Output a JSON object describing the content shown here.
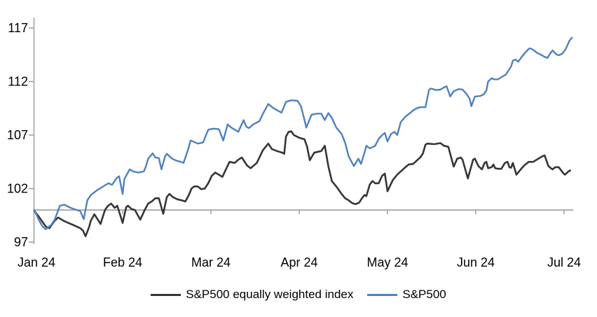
{
  "chart_data": {
    "type": "line",
    "title": "",
    "x_axis": {
      "labels": [
        "Jan 24",
        "Feb 24",
        "Mar 24",
        "Apr 24",
        "May 24",
        "Jun 24",
        "Jul 24"
      ]
    },
    "y_axis": {
      "min": 97,
      "max": 117,
      "ticks": [
        97,
        102,
        107,
        112,
        117
      ]
    },
    "baseline_value": 100,
    "grid": false,
    "legend_position": "bottom",
    "series": [
      {
        "name": "S&P500 equally weighted index",
        "color": "#363636",
        "points": [
          [
            0.0,
            99.9
          ],
          [
            0.05,
            99.4
          ],
          [
            0.1,
            98.8
          ],
          [
            0.13,
            98.45
          ],
          [
            0.17,
            98.3
          ],
          [
            0.23,
            99.0
          ],
          [
            0.27,
            99.3
          ],
          [
            0.33,
            99.0
          ],
          [
            0.37,
            98.85
          ],
          [
            0.44,
            98.6
          ],
          [
            0.52,
            98.3
          ],
          [
            0.55,
            98.1
          ],
          [
            0.58,
            97.55
          ],
          [
            0.62,
            98.4
          ],
          [
            0.64,
            99.0
          ],
          [
            0.68,
            99.6
          ],
          [
            0.75,
            98.7
          ],
          [
            0.8,
            100.0
          ],
          [
            0.83,
            100.35
          ],
          [
            0.87,
            100.6
          ],
          [
            0.91,
            100.2
          ],
          [
            0.94,
            100.4
          ],
          [
            1.0,
            98.8
          ],
          [
            1.04,
            100.25
          ],
          [
            1.06,
            100.4
          ],
          [
            1.1,
            100.1
          ],
          [
            1.14,
            100.0
          ],
          [
            1.2,
            99.1
          ],
          [
            1.25,
            100.0
          ],
          [
            1.29,
            100.6
          ],
          [
            1.33,
            100.8
          ],
          [
            1.37,
            101.1
          ],
          [
            1.41,
            101.1
          ],
          [
            1.46,
            99.65
          ],
          [
            1.5,
            101.2
          ],
          [
            1.53,
            101.5
          ],
          [
            1.57,
            101.2
          ],
          [
            1.62,
            101.0
          ],
          [
            1.67,
            100.9
          ],
          [
            1.71,
            100.8
          ],
          [
            1.75,
            101.4
          ],
          [
            1.78,
            102.0
          ],
          [
            1.81,
            102.2
          ],
          [
            1.85,
            102.2
          ],
          [
            1.89,
            101.95
          ],
          [
            1.93,
            102.0
          ],
          [
            1.97,
            102.5
          ],
          [
            2.01,
            103.2
          ],
          [
            2.05,
            103.5
          ],
          [
            2.13,
            103.1
          ],
          [
            2.21,
            104.5
          ],
          [
            2.27,
            104.4
          ],
          [
            2.31,
            104.7
          ],
          [
            2.35,
            104.9
          ],
          [
            2.41,
            104.15
          ],
          [
            2.45,
            103.9
          ],
          [
            2.52,
            104.4
          ],
          [
            2.59,
            105.6
          ],
          [
            2.65,
            106.2
          ],
          [
            2.69,
            105.7
          ],
          [
            2.75,
            105.5
          ],
          [
            2.81,
            105.35
          ],
          [
            2.83,
            105.25
          ],
          [
            2.85,
            106.85
          ],
          [
            2.88,
            107.3
          ],
          [
            2.91,
            107.35
          ],
          [
            2.94,
            107.0
          ],
          [
            3.0,
            106.75
          ],
          [
            3.02,
            106.7
          ],
          [
            3.06,
            106.6
          ],
          [
            3.09,
            105.9
          ],
          [
            3.12,
            104.65
          ],
          [
            3.17,
            105.35
          ],
          [
            3.22,
            105.45
          ],
          [
            3.25,
            105.5
          ],
          [
            3.29,
            106.0
          ],
          [
            3.33,
            104.1
          ],
          [
            3.37,
            102.7
          ],
          [
            3.42,
            102.2
          ],
          [
            3.48,
            101.5
          ],
          [
            3.52,
            101.1
          ],
          [
            3.56,
            100.9
          ],
          [
            3.6,
            100.65
          ],
          [
            3.64,
            100.55
          ],
          [
            3.68,
            100.7
          ],
          [
            3.71,
            101.1
          ],
          [
            3.74,
            101.4
          ],
          [
            3.76,
            101.3
          ],
          [
            3.8,
            102.4
          ],
          [
            3.83,
            102.7
          ],
          [
            3.86,
            102.5
          ],
          [
            3.9,
            102.5
          ],
          [
            3.94,
            103.2
          ],
          [
            3.97,
            103.4
          ],
          [
            4.0,
            101.75
          ],
          [
            4.06,
            102.8
          ],
          [
            4.11,
            103.3
          ],
          [
            4.19,
            103.9
          ],
          [
            4.24,
            104.25
          ],
          [
            4.29,
            104.3
          ],
          [
            4.37,
            104.9
          ],
          [
            4.4,
            105.25
          ],
          [
            4.43,
            106.1
          ],
          [
            4.45,
            106.2
          ],
          [
            4.53,
            106.15
          ],
          [
            4.6,
            106.25
          ],
          [
            4.64,
            106.0
          ],
          [
            4.69,
            105.9
          ],
          [
            4.71,
            105.25
          ],
          [
            4.75,
            104.05
          ],
          [
            4.79,
            104.8
          ],
          [
            4.83,
            104.9
          ],
          [
            4.85,
            104.7
          ],
          [
            4.91,
            102.95
          ],
          [
            4.97,
            104.7
          ],
          [
            4.99,
            104.8
          ],
          [
            5.03,
            104.1
          ],
          [
            5.07,
            103.8
          ],
          [
            5.1,
            104.4
          ],
          [
            5.12,
            104.5
          ],
          [
            5.14,
            103.9
          ],
          [
            5.18,
            104.0
          ],
          [
            5.2,
            104.25
          ],
          [
            5.22,
            103.9
          ],
          [
            5.25,
            103.85
          ],
          [
            5.29,
            103.85
          ],
          [
            5.33,
            104.4
          ],
          [
            5.36,
            104.5
          ],
          [
            5.38,
            104.0
          ],
          [
            5.4,
            103.95
          ],
          [
            5.42,
            104.4
          ],
          [
            5.46,
            103.3
          ],
          [
            5.52,
            103.9
          ],
          [
            5.56,
            104.25
          ],
          [
            5.6,
            104.5
          ],
          [
            5.65,
            104.5
          ],
          [
            5.71,
            104.8
          ],
          [
            5.75,
            105.0
          ],
          [
            5.78,
            105.1
          ],
          [
            5.82,
            104.15
          ],
          [
            5.85,
            103.9
          ],
          [
            5.87,
            103.8
          ],
          [
            5.9,
            104.0
          ],
          [
            5.94,
            104.0
          ],
          [
            5.99,
            103.45
          ],
          [
            6.01,
            103.3
          ],
          [
            6.05,
            103.6
          ],
          [
            6.07,
            103.7
          ]
        ]
      },
      {
        "name": "S&P500",
        "color": "#4F81BD",
        "points": [
          [
            0.0,
            100.0
          ],
          [
            0.05,
            99.1
          ],
          [
            0.09,
            98.5
          ],
          [
            0.13,
            98.2
          ],
          [
            0.19,
            98.6
          ],
          [
            0.23,
            99.1
          ],
          [
            0.29,
            100.4
          ],
          [
            0.34,
            100.5
          ],
          [
            0.41,
            100.2
          ],
          [
            0.48,
            100.0
          ],
          [
            0.52,
            99.9
          ],
          [
            0.56,
            99.15
          ],
          [
            0.6,
            100.9
          ],
          [
            0.64,
            101.4
          ],
          [
            0.71,
            101.85
          ],
          [
            0.76,
            102.1
          ],
          [
            0.8,
            102.3
          ],
          [
            0.84,
            102.5
          ],
          [
            0.88,
            102.35
          ],
          [
            0.94,
            103.05
          ],
          [
            0.96,
            103.15
          ],
          [
            1.0,
            101.5
          ],
          [
            1.02,
            102.9
          ],
          [
            1.08,
            103.8
          ],
          [
            1.12,
            103.6
          ],
          [
            1.18,
            103.5
          ],
          [
            1.24,
            103.6
          ],
          [
            1.26,
            104.0
          ],
          [
            1.29,
            104.8
          ],
          [
            1.32,
            105.1
          ],
          [
            1.34,
            105.3
          ],
          [
            1.37,
            104.9
          ],
          [
            1.41,
            104.85
          ],
          [
            1.44,
            103.8
          ],
          [
            1.48,
            105.0
          ],
          [
            1.5,
            105.25
          ],
          [
            1.56,
            104.8
          ],
          [
            1.61,
            104.6
          ],
          [
            1.66,
            104.5
          ],
          [
            1.69,
            104.4
          ],
          [
            1.74,
            105.6
          ],
          [
            1.77,
            106.5
          ],
          [
            1.85,
            106.2
          ],
          [
            1.91,
            106.3
          ],
          [
            1.97,
            107.5
          ],
          [
            2.03,
            107.6
          ],
          [
            2.09,
            107.55
          ],
          [
            2.14,
            106.5
          ],
          [
            2.19,
            108.0
          ],
          [
            2.23,
            107.7
          ],
          [
            2.27,
            107.5
          ],
          [
            2.31,
            107.3
          ],
          [
            2.37,
            108.4
          ],
          [
            2.4,
            107.8
          ],
          [
            2.43,
            107.65
          ],
          [
            2.48,
            108.0
          ],
          [
            2.55,
            108.3
          ],
          [
            2.59,
            109.0
          ],
          [
            2.65,
            109.9
          ],
          [
            2.71,
            109.5
          ],
          [
            2.8,
            109.1
          ],
          [
            2.85,
            110.1
          ],
          [
            2.91,
            110.25
          ],
          [
            2.98,
            110.2
          ],
          [
            3.02,
            109.7
          ],
          [
            3.06,
            108.4
          ],
          [
            3.08,
            107.7
          ],
          [
            3.14,
            108.9
          ],
          [
            3.2,
            109.0
          ],
          [
            3.25,
            109.0
          ],
          [
            3.29,
            108.4
          ],
          [
            3.33,
            109.05
          ],
          [
            3.37,
            108.6
          ],
          [
            3.42,
            107.7
          ],
          [
            3.48,
            107.1
          ],
          [
            3.52,
            106.3
          ],
          [
            3.56,
            105.0
          ],
          [
            3.62,
            104.1
          ],
          [
            3.67,
            104.8
          ],
          [
            3.7,
            104.3
          ],
          [
            3.74,
            105.35
          ],
          [
            3.76,
            106.0
          ],
          [
            3.8,
            105.75
          ],
          [
            3.86,
            106.0
          ],
          [
            3.9,
            106.65
          ],
          [
            3.94,
            107.0
          ],
          [
            3.97,
            107.2
          ],
          [
            4.0,
            106.4
          ],
          [
            4.04,
            107.1
          ],
          [
            4.08,
            107.3
          ],
          [
            4.11,
            107.0
          ],
          [
            4.15,
            108.2
          ],
          [
            4.2,
            108.7
          ],
          [
            4.24,
            108.95
          ],
          [
            4.29,
            109.3
          ],
          [
            4.33,
            109.5
          ],
          [
            4.37,
            109.6
          ],
          [
            4.43,
            109.6
          ],
          [
            4.47,
            111.2
          ],
          [
            4.49,
            111.35
          ],
          [
            4.55,
            111.2
          ],
          [
            4.6,
            111.25
          ],
          [
            4.65,
            111.5
          ],
          [
            4.67,
            111.55
          ],
          [
            4.71,
            110.6
          ],
          [
            4.75,
            111.1
          ],
          [
            4.81,
            111.3
          ],
          [
            4.85,
            111.25
          ],
          [
            4.89,
            110.9
          ],
          [
            4.93,
            110.4
          ],
          [
            4.95,
            109.7
          ],
          [
            4.99,
            110.6
          ],
          [
            5.05,
            110.65
          ],
          [
            5.09,
            110.8
          ],
          [
            5.12,
            111.15
          ],
          [
            5.14,
            112.0
          ],
          [
            5.18,
            112.3
          ],
          [
            5.21,
            112.2
          ],
          [
            5.25,
            112.2
          ],
          [
            5.29,
            112.4
          ],
          [
            5.34,
            112.65
          ],
          [
            5.4,
            113.4
          ],
          [
            5.42,
            113.95
          ],
          [
            5.45,
            114.05
          ],
          [
            5.48,
            113.85
          ],
          [
            5.52,
            114.3
          ],
          [
            5.56,
            114.7
          ],
          [
            5.6,
            115.05
          ],
          [
            5.62,
            115.1
          ],
          [
            5.66,
            114.9
          ],
          [
            5.69,
            114.7
          ],
          [
            5.74,
            114.5
          ],
          [
            5.78,
            114.3
          ],
          [
            5.81,
            114.2
          ],
          [
            5.85,
            114.7
          ],
          [
            5.87,
            114.9
          ],
          [
            5.91,
            114.55
          ],
          [
            5.94,
            114.45
          ],
          [
            5.98,
            114.6
          ],
          [
            6.02,
            115.05
          ],
          [
            6.06,
            115.8
          ],
          [
            6.09,
            116.1
          ]
        ]
      }
    ]
  },
  "legend": {
    "items": [
      {
        "label": "S&P500 equally weighted index",
        "color": "#363636"
      },
      {
        "label": "S&P500",
        "color": "#4F81BD"
      }
    ]
  },
  "colors": {
    "axis": "#a3a3a3",
    "baseline": "#a3a3a3",
    "text": "#000000",
    "background": "#ffffff"
  }
}
